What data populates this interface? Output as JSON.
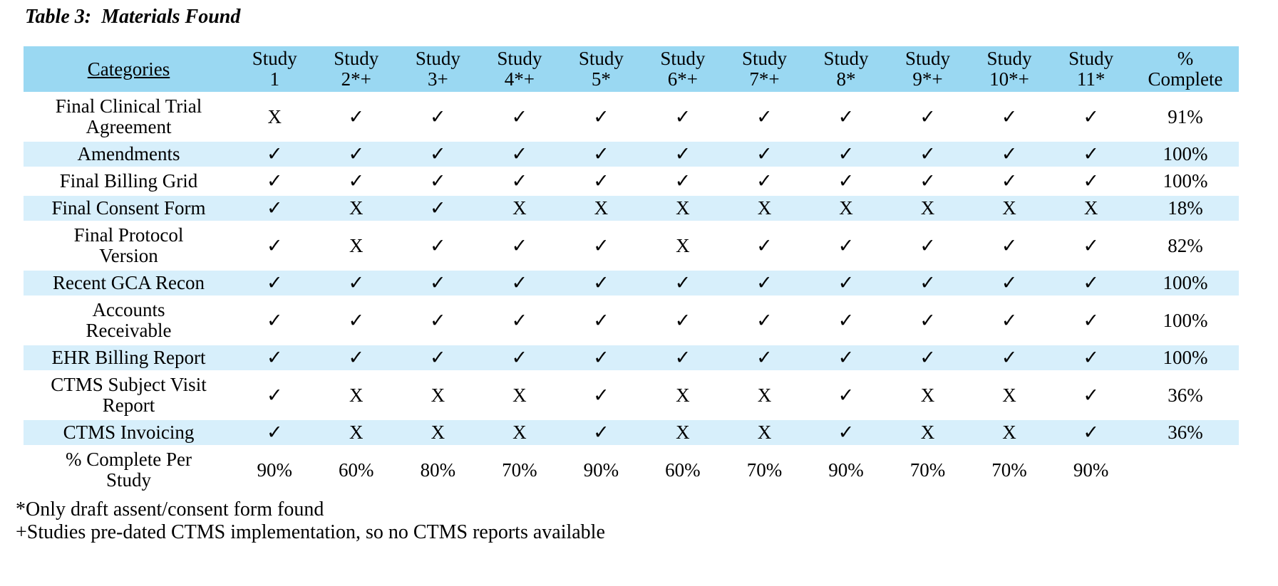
{
  "title": "Table 3:  Materials Found",
  "table": {
    "header": {
      "categories_label": "Categories",
      "columns": [
        "Study\n1",
        "Study\n2*+",
        "Study\n3+",
        "Study\n4*+",
        "Study\n5*",
        "Study\n6*+",
        "Study\n7*+",
        "Study\n8*",
        "Study\n9*+",
        "Study\n10*+",
        "Study\n11*",
        "%\nComplete"
      ]
    },
    "rows": [
      {
        "category": "Final Clinical Trial\nAgreement",
        "marks": [
          "X",
          "✓",
          "✓",
          "✓",
          "✓",
          "✓",
          "✓",
          "✓",
          "✓",
          "✓",
          "✓"
        ],
        "complete": "91%",
        "striped": false,
        "bold_marks": false
      },
      {
        "category": "Amendments",
        "marks": [
          "✓",
          "✓",
          "✓",
          "✓",
          "✓",
          "✓",
          "✓",
          "✓",
          "✓",
          "✓",
          "✓"
        ],
        "complete": "100%",
        "striped": true,
        "bold_marks": false
      },
      {
        "category": "Final Billing Grid",
        "marks": [
          "✓",
          "✓",
          "✓",
          "✓",
          "✓",
          "✓",
          "✓",
          "✓",
          "✓",
          "✓",
          "✓"
        ],
        "complete": "100%",
        "striped": false,
        "bold_marks": false
      },
      {
        "category": "Final Consent Form",
        "marks": [
          "✓",
          "X",
          "✓",
          "X",
          "X",
          "X",
          "X",
          "X",
          "X",
          "X",
          "X"
        ],
        "complete": "18%",
        "striped": true,
        "bold_marks": false
      },
      {
        "category": "Final Protocol\nVersion",
        "marks": [
          "✓",
          "X",
          "✓",
          "✓",
          "✓",
          "X",
          "✓",
          "✓",
          "✓",
          "✓",
          "✓"
        ],
        "complete": "82%",
        "striped": false,
        "bold_marks": false
      },
      {
        "category": "Recent GCA Recon",
        "marks": [
          "✓",
          "✓",
          "✓",
          "✓",
          "✓",
          "✓",
          "✓",
          "✓",
          "✓",
          "✓",
          "✓"
        ],
        "complete": "100%",
        "striped": true,
        "bold_marks": false
      },
      {
        "category": "Accounts\nReceivable",
        "marks": [
          "✓",
          "✓",
          "✓",
          "✓",
          "✓",
          "✓",
          "✓",
          "✓",
          "✓",
          "✓",
          "✓"
        ],
        "complete": "100%",
        "striped": false,
        "bold_marks": false
      },
      {
        "category": "EHR Billing Report",
        "marks": [
          "✓",
          "✓",
          "✓",
          "✓",
          "✓",
          "✓",
          "✓",
          "✓",
          "✓",
          "✓",
          "✓"
        ],
        "complete": "100%",
        "striped": true,
        "bold_marks": false
      },
      {
        "category": "CTMS Subject Visit\nReport",
        "marks": [
          "✓",
          "X",
          "X",
          "X",
          "✓",
          "X",
          "X",
          "✓",
          "X",
          "X",
          "✓"
        ],
        "complete": "36%",
        "striped": false,
        "bold_marks": false
      },
      {
        "category": "CTMS Invoicing",
        "marks": [
          "✓",
          "X",
          "X",
          "X",
          "✓",
          "X",
          "X",
          "✓",
          "X",
          "X",
          "✓"
        ],
        "complete": "36%",
        "striped": true,
        "bold_marks": false
      },
      {
        "category": "% Complete Per\nStudy",
        "marks": [
          "90%",
          "60%",
          "80%",
          "70%",
          "90%",
          "60%",
          "70%",
          "90%",
          "70%",
          "70%",
          "90%"
        ],
        "complete": "",
        "striped": false,
        "bold_marks": true
      }
    ]
  },
  "footnotes": [
    "*Only draft assent/consent form found",
    "+Studies pre-dated CTMS implementation, so no CTMS reports available"
  ],
  "colors": {
    "header_blue": "#9AD8F2",
    "stripe_blue": "#D7EFFB",
    "text": "#000000"
  }
}
